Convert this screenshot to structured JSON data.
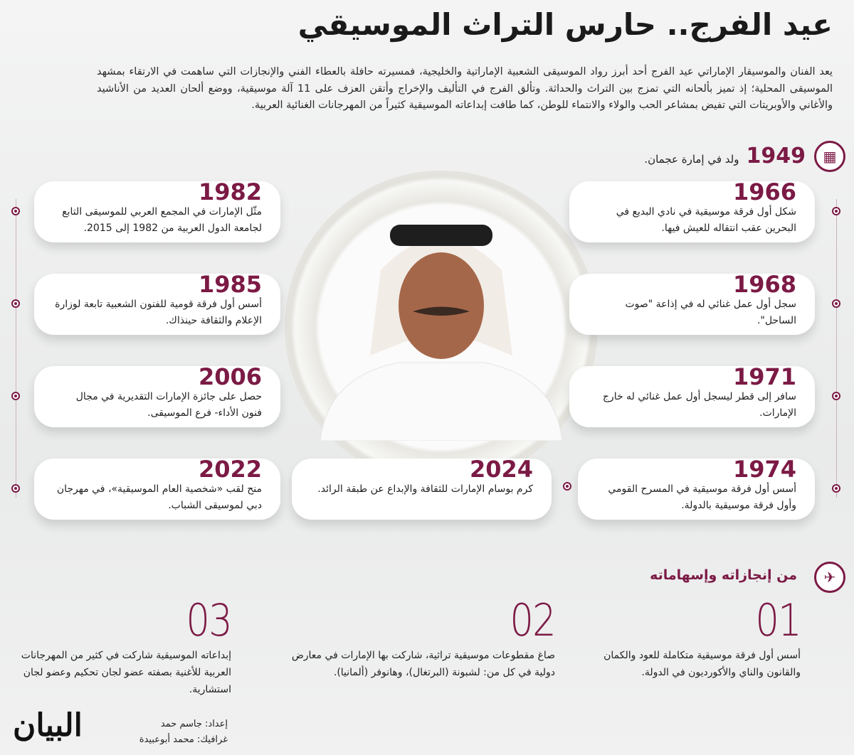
{
  "title": "عيد الفرج.. حارس التراث الموسيقي",
  "intro": "يعد الفنان والموسيقار الإماراتي عيد الفرج أحد أبرز رواد الموسيقى الشعبية الإماراتية والخليجية، فمسيرته حافلة بالعطاء الفني والإنجازات التي ساهمت في الارتقاء بمشهد الموسيقى المحلية؛ إذ تميز بألحانه التي تمزج بين التراث والحداثة. وتألق الفرج في التأليف والإخراج وأتقن العزف على 11 آلة موسيقية، ووضع ألحان العديد من الأناشيد والأغاني والأوبريتات التي تفيض بمشاعر الحب والولاء والانتماء للوطن، كما طافت إبداعاته الموسيقية كثيراً من المهرجانات الغنائية العربية.",
  "birth": {
    "year": "1949",
    "text": "ولد في إمارة عجمان.",
    "icon": "calendar-icon"
  },
  "timeline_right": [
    {
      "year": "1966",
      "text": "شكل أول فرقة موسيقية في نادي البديع في البحرين عقب انتقاله للعيش فيها."
    },
    {
      "year": "1968",
      "text": "سجل أول عمل غنائي له في إذاعة \"صوت الساحل\"."
    },
    {
      "year": "1971",
      "text": "سافر إلى قطر ليسجل أول عمل غنائي له خارج الإمارات."
    },
    {
      "year": "1974",
      "text": "أسس أول فرقة موسيقية في المسرح القومي وأول فرقة موسيقية بالدولة."
    }
  ],
  "timeline_left": [
    {
      "year": "1982",
      "text": "مثّل الإمارات في المجمع العربي للموسيقى التابع لجامعة الدول العربية من 1982 إلى 2015."
    },
    {
      "year": "1985",
      "text": "أسس أول فرقة قومية للفنون الشعبية تابعة لوزارة الإعلام والثقافة حينذاك."
    },
    {
      "year": "2006",
      "text": "حصل على جائزة الإمارات التقديرية في مجال فنون الأداء- فرع الموسيقى."
    },
    {
      "year": "2022",
      "text": "منح لقب «شخصية العام الموسيقية»، في مهرجان دبي لموسيقى الشباب."
    }
  ],
  "timeline_center": {
    "year": "2024",
    "text": "كرم بوسام الإمارات للثقافة والإبداع عن طبقة الرائد."
  },
  "achievements": {
    "title": "من إنجازاته وإسهاماته",
    "icon": "satellite-icon",
    "items": [
      {
        "num": "01",
        "text": "أسس أول فرقة موسيقية متكاملة للعود والكمان والقانون والناي والأكورديون في الدولة."
      },
      {
        "num": "02",
        "text": "صاغ مقطوعات موسيقية تراثية، شاركت بها الإمارات في معارض دولية في كل من: لشبونة (البرتغال)، وهانوفر (ألمانيا)."
      },
      {
        "num": "03",
        "text": "إبداعاته الموسيقية شاركت في كثير من المهرجانات العربية للأغنية بصفته عضو لجان تحكيم وعضو لجان استشارية."
      }
    ]
  },
  "credits": {
    "prep": "إعداد: جاسم حمد",
    "graphics": "غرافيك: محمد أبوعبيدة"
  },
  "logo": "البيان",
  "colors": {
    "accent": "#7b1a45"
  }
}
